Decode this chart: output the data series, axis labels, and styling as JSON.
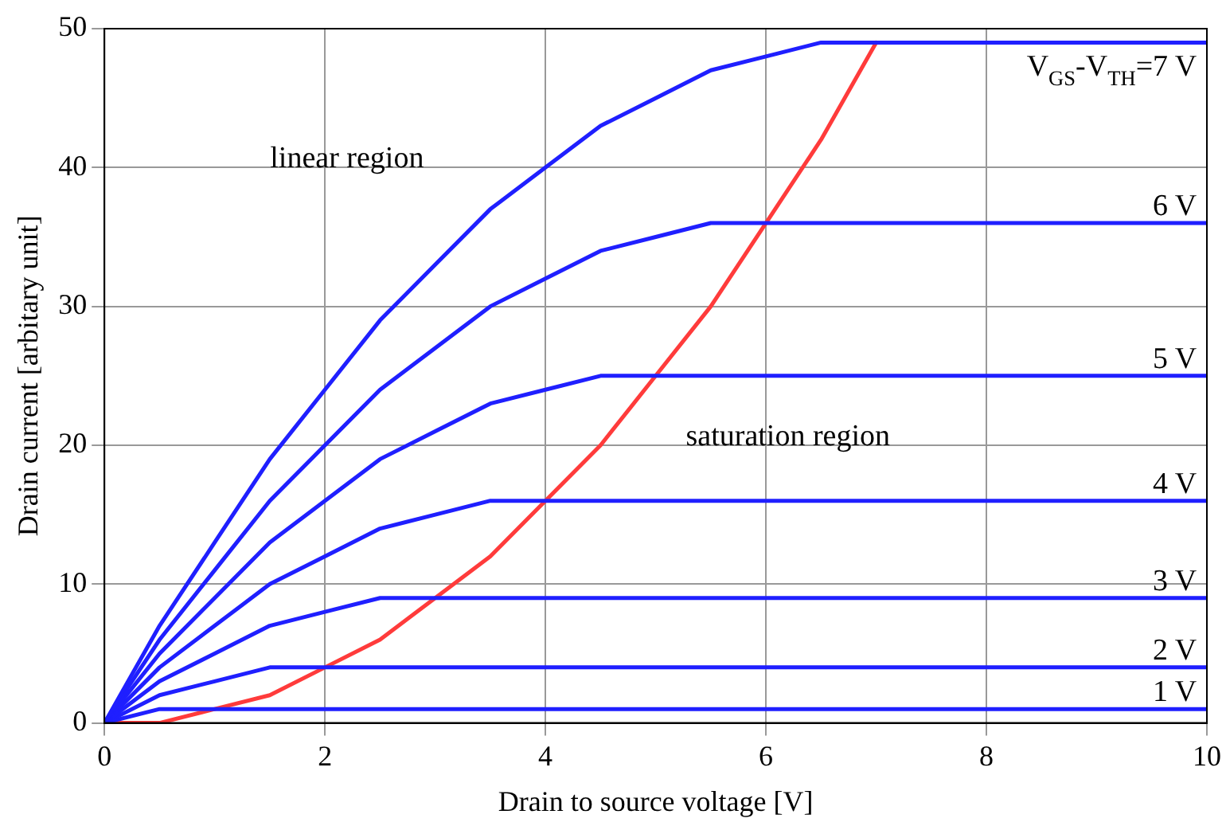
{
  "chart_data": {
    "type": "line",
    "xlabel": "Drain to source voltage [V]",
    "ylabel": "Drain current [arbitary unit]",
    "xlim": [
      0,
      10
    ],
    "xticks": [
      0,
      2,
      4,
      6,
      8,
      10
    ],
    "ylim": [
      0,
      50
    ],
    "yticks": [
      0,
      10,
      20,
      30,
      40,
      50
    ],
    "grid": true,
    "legend": false,
    "marker": "none",
    "line_style": "solid",
    "annotations": [
      "linear region",
      "saturation region"
    ],
    "series": [
      {
        "name": "V$_{GS}$-V$_{TH}$=7 V",
        "color": "#1f1fff",
        "x": [
          0,
          0.5,
          1,
          1.5,
          2,
          2.5,
          3,
          3.5,
          4,
          4.5,
          5,
          5.5,
          6,
          6.5,
          7,
          10
        ],
        "values": [
          0,
          7,
          13,
          19,
          24,
          29,
          33,
          37,
          40,
          43,
          45,
          47,
          48,
          49,
          49,
          49
        ]
      },
      {
        "name": "6 V",
        "color": "#1f1fff",
        "x": [
          0,
          0.5,
          1,
          1.5,
          2,
          2.5,
          3,
          3.5,
          4,
          4.5,
          5,
          5.5,
          6,
          10
        ],
        "values": [
          0,
          6,
          11,
          16,
          20,
          24,
          27,
          30,
          32,
          34,
          35,
          36,
          36,
          36
        ]
      },
      {
        "name": "5 V",
        "color": "#1f1fff",
        "x": [
          0,
          0.5,
          1,
          1.5,
          2,
          2.5,
          3,
          3.5,
          4,
          4.5,
          5,
          10
        ],
        "values": [
          0,
          5,
          9,
          13,
          16,
          19,
          21,
          23,
          24,
          25,
          25,
          25
        ]
      },
      {
        "name": "4 V",
        "color": "#1f1fff",
        "x": [
          0,
          0.5,
          1,
          1.5,
          2,
          2.5,
          3,
          3.5,
          4,
          10
        ],
        "values": [
          0,
          4,
          7,
          10,
          12,
          14,
          15,
          16,
          16,
          16
        ]
      },
      {
        "name": "3 V",
        "color": "#1f1fff",
        "x": [
          0,
          0.5,
          1,
          1.5,
          2,
          2.5,
          3,
          10
        ],
        "values": [
          0,
          3,
          5,
          7,
          8,
          9,
          9,
          9
        ]
      },
      {
        "name": "2 V",
        "color": "#1f1fff",
        "x": [
          0,
          0.5,
          1,
          1.5,
          2,
          10
        ],
        "values": [
          0,
          2,
          3,
          4,
          4,
          4
        ]
      },
      {
        "name": "1 V",
        "color": "#1f1fff",
        "x": [
          0,
          0.5,
          1,
          10
        ],
        "values": [
          0,
          1,
          1,
          1
        ]
      },
      {
        "color": "#ff3b3b",
        "x": [
          0,
          0.5,
          1,
          1.5,
          2,
          2.5,
          3,
          3.5,
          4,
          4.5,
          5,
          5.5,
          6,
          6.5,
          7
        ],
        "values": [
          0,
          0,
          1,
          2,
          4,
          6,
          9,
          12,
          16,
          20,
          25,
          30,
          36,
          42,
          49
        ]
      }
    ]
  }
}
